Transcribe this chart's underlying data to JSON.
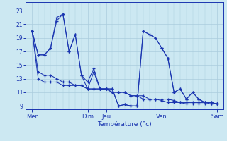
{
  "xlabel": "Température (°c)",
  "background_color": "#cce8f2",
  "line_color": "#1a35b0",
  "grid_color": "#aaccdd",
  "ylim": [
    8.5,
    24.2
  ],
  "yticks": [
    9,
    11,
    13,
    15,
    17,
    19,
    21,
    23
  ],
  "day_labels": [
    "Mer",
    "Dim",
    "Jeu",
    "Ven",
    "Sam"
  ],
  "day_positions": [
    0,
    9,
    12,
    21,
    30
  ],
  "xlim": [
    -1,
    31
  ],
  "series1_y": [
    20.0,
    16.5,
    16.5,
    17.5,
    21.5,
    22.5,
    17.0,
    19.5,
    13.5,
    11.5,
    14.0,
    11.5,
    11.5,
    11.5,
    9.0,
    9.2,
    9.0,
    9.0,
    20.0,
    19.5,
    19.0,
    17.5,
    16.0,
    11.0,
    11.5,
    10.0,
    11.0,
    10.0,
    9.5,
    9.5,
    9.3
  ],
  "series2_y": [
    20.0,
    16.5,
    16.5,
    17.5,
    22.0,
    22.5,
    17.0,
    19.5,
    13.5,
    12.5,
    14.5,
    11.5,
    11.5,
    11.5,
    9.0,
    9.2,
    9.0,
    9.0,
    20.0,
    19.5,
    19.0,
    17.5,
    16.0,
    11.0,
    11.5,
    10.0,
    11.0,
    10.0,
    9.5,
    9.5,
    9.3
  ],
  "series3_y": [
    20.0,
    14.0,
    13.5,
    13.5,
    13.0,
    12.5,
    12.5,
    12.0,
    12.0,
    11.5,
    11.5,
    11.5,
    11.5,
    11.0,
    11.0,
    11.0,
    10.5,
    10.5,
    10.0,
    10.0,
    10.0,
    9.8,
    9.5,
    9.5,
    9.5,
    9.3,
    9.3,
    9.3,
    9.3,
    9.3,
    9.3
  ],
  "series4_y": [
    20.0,
    13.0,
    12.5,
    12.5,
    12.5,
    12.0,
    12.0,
    12.0,
    12.0,
    11.5,
    11.5,
    11.5,
    11.5,
    11.0,
    11.0,
    11.0,
    10.5,
    10.5,
    10.5,
    10.0,
    10.0,
    10.0,
    10.0,
    9.8,
    9.5,
    9.5,
    9.5,
    9.5,
    9.5,
    9.3,
    9.3
  ],
  "figwidth": 3.2,
  "figheight": 2.0,
  "dpi": 100
}
